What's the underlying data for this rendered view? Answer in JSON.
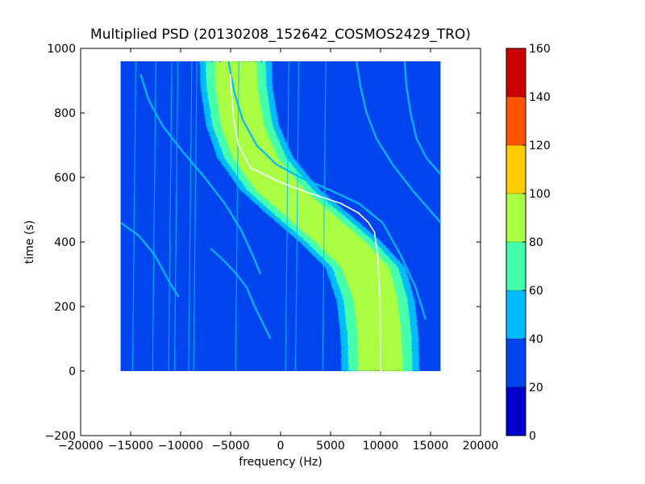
{
  "chart_data": {
    "type": "heatmap",
    "title": "Multiplied PSD (20130208_152642_COSMOS2429_TRO)",
    "xlabel": "frequency (Hz)",
    "ylabel": "time (s)",
    "xlim": [
      -20000,
      20000
    ],
    "ylim": [
      -200,
      1000
    ],
    "x_ticks": [
      -20000,
      -15000,
      -10000,
      -5000,
      0,
      5000,
      10000,
      15000,
      20000
    ],
    "x_tick_labels": [
      "−20000",
      "−15000",
      "−10000",
      "−5000",
      "0",
      "5000",
      "10000",
      "15000",
      "20000"
    ],
    "y_ticks": [
      -200,
      0,
      200,
      400,
      600,
      800,
      1000
    ],
    "y_tick_labels": [
      "−200",
      "0",
      "200",
      "400",
      "600",
      "800",
      "1000"
    ],
    "data_extent": {
      "x": [
        -16000,
        16000
      ],
      "y": [
        0,
        960
      ]
    },
    "colorbar": {
      "levels": [
        0,
        20,
        40,
        60,
        80,
        100,
        120,
        140,
        160
      ],
      "tick_labels": [
        "0",
        "20",
        "40",
        "60",
        "80",
        "100",
        "120",
        "140",
        "160"
      ],
      "colors": [
        "#0000cc",
        "#0044ee",
        "#00bbff",
        "#44ffaa",
        "#aaff44",
        "#ffcc00",
        "#ff5500",
        "#cc0000"
      ]
    },
    "background_level_range": [
      20,
      40
    ],
    "main_band": {
      "center_x": [
        -4500,
        -4400,
        -3800,
        -2500,
        0,
        3000,
        6000,
        8500,
        9500,
        9900,
        10000
      ],
      "y": [
        960,
        880,
        760,
        660,
        560,
        480,
        400,
        320,
        220,
        110,
        0
      ],
      "halfwidth_60_80": [
        3000,
        3000,
        3000,
        3100,
        3300,
        3400,
        3400,
        3300,
        3200,
        3200,
        3200
      ],
      "halfwidth_80_100": [
        2100,
        2100,
        2150,
        2250,
        2450,
        2500,
        2500,
        2400,
        2200,
        2200,
        2200
      ],
      "halfwidth_40_60": [
        3600,
        3600,
        3650,
        3800,
        4000,
        4100,
        4100,
        4000,
        3900,
        3900,
        3900
      ]
    },
    "white_trace": {
      "x": [
        -5000,
        -4900,
        -4700,
        -4200,
        -3000,
        0,
        3000,
        6000,
        7800,
        8800,
        9400,
        9700,
        9950,
        10000
      ],
      "y": [
        920,
        860,
        780,
        700,
        630,
        585,
        550,
        520,
        490,
        460,
        430,
        360,
        220,
        0
      ]
    },
    "faint_curves": [
      {
        "x": [
          -14000,
          -13200,
          -11800,
          -9800,
          -7600,
          -5600,
          -4000,
          -2800,
          -2000
        ],
        "y": [
          920,
          840,
          760,
          680,
          600,
          520,
          440,
          360,
          300
        ]
      },
      {
        "x": [
          -5200,
          -4600,
          -3800,
          -2400,
          -400,
          2000,
          5000,
          7800,
          10200,
          12000,
          13500,
          14500
        ],
        "y": [
          960,
          860,
          780,
          700,
          640,
          600,
          560,
          520,
          460,
          360,
          260,
          160
        ]
      },
      {
        "x": [
          -16000,
          -14200,
          -12600,
          -11200,
          -10200
        ],
        "y": [
          460,
          420,
          360,
          280,
          230
        ]
      },
      {
        "x": [
          -7000,
          -5600,
          -4400,
          -3400,
          -2600,
          -1800,
          -1000
        ],
        "y": [
          380,
          340,
          300,
          260,
          200,
          150,
          100
        ]
      },
      {
        "x": [
          7600,
          8000,
          8600,
          9600,
          11200,
          13200,
          16000
        ],
        "y": [
          960,
          880,
          800,
          720,
          640,
          560,
          460
        ]
      },
      {
        "x": [
          12400,
          12600,
          13000,
          13600,
          14600,
          16000
        ],
        "y": [
          960,
          880,
          800,
          720,
          660,
          610
        ]
      }
    ],
    "vertical_lines_x": [
      -14800,
      -12800,
      -11200,
      -10600,
      -9200,
      -8700,
      -4500,
      500,
      1500,
      4200
    ],
    "grid": false
  }
}
